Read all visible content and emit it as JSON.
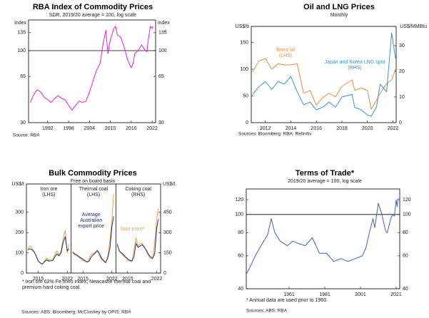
{
  "chart_data": [
    {
      "type": "line",
      "title": "RBA Index of Commodity Prices",
      "subtitle": "SDR, 2019/20 average = 100, log scale",
      "ylabel": "index",
      "y2label": "index",
      "log": true,
      "xlim": [
        1986.5,
        2023
      ],
      "xticks": [
        1992,
        1998,
        2004,
        2010,
        2016,
        2022
      ],
      "ylim": [
        30,
        167
      ],
      "yticks": [
        30,
        65,
        100,
        135
      ],
      "y2lim": [
        30,
        167
      ],
      "y2ticks": [
        30,
        65,
        100,
        135
      ],
      "hline": 100,
      "series": [
        {
          "color": "#e61ee6",
          "x": [
            1987,
            1988,
            1989,
            1990,
            1991,
            1992,
            1993,
            1994,
            1995,
            1996,
            1997,
            1998,
            1999,
            2000,
            2001,
            2002,
            2003,
            2004,
            2005,
            2006,
            2007,
            2008,
            2008.7,
            2009.3,
            2010,
            2011,
            2011.5,
            2012,
            2013,
            2014,
            2015,
            2016,
            2016.5,
            2017,
            2018,
            2019,
            2020,
            2020.5,
            2021,
            2021.5,
            2022,
            2022.3
          ],
          "values": [
            42,
            48,
            52,
            50,
            46,
            44,
            42,
            45,
            47,
            45,
            44,
            40,
            37,
            40,
            43,
            42,
            43,
            50,
            60,
            72,
            80,
            115,
            140,
            95,
            120,
            145,
            150,
            130,
            125,
            105,
            85,
            75,
            80,
            95,
            100,
            110,
            100,
            98,
            125,
            150,
            145,
            150
          ]
        }
      ],
      "source": "Source: RBA"
    },
    {
      "type": "line",
      "title": "Oil and LNG Prices",
      "subtitle": "Monthly",
      "ylabel": "US$/b",
      "y2label": "US$/MMBtu",
      "xlim": [
        2010.9,
        2022.25
      ],
      "xticks": [
        2012,
        2014,
        2016,
        2018,
        2020,
        2022
      ],
      "ylim": [
        0,
        180
      ],
      "yticks": [
        0,
        50,
        100,
        150
      ],
      "y2lim": [
        0,
        37.5
      ],
      "y2ticks": [
        0,
        10,
        20,
        30
      ],
      "series": [
        {
          "name": "Brent oil",
          "label": "(LHS)",
          "color": "#f08a3e",
          "x": [
            2011,
            2011.5,
            2012,
            2012.5,
            2013,
            2013.5,
            2014,
            2014.5,
            2015,
            2015.5,
            2016,
            2016.5,
            2017,
            2017.5,
            2018,
            2018.8,
            2019,
            2019.5,
            2020,
            2020.3,
            2020.7,
            2021,
            2021.5,
            2021.9,
            2022.2
          ],
          "values": [
            95,
            115,
            120,
            100,
            110,
            108,
            108,
            110,
            55,
            60,
            33,
            47,
            55,
            48,
            68,
            80,
            60,
            65,
            60,
            25,
            42,
            55,
            73,
            80,
            100
          ]
        },
        {
          "name": "Japan and Korea LNG spot",
          "label": "(RHS)",
          "color": "#3a93d6",
          "axis": "y2",
          "x": [
            2011,
            2011.5,
            2012,
            2012.5,
            2013,
            2013.5,
            2014,
            2014.5,
            2015,
            2015.5,
            2016,
            2016.5,
            2017,
            2017.5,
            2018,
            2018.8,
            2019,
            2019.5,
            2020,
            2020.3,
            2020.7,
            2021,
            2021.5,
            2021.9,
            2022.2
          ],
          "values": [
            11,
            14,
            16,
            13,
            16,
            15,
            18,
            12,
            7,
            8,
            5,
            6,
            8,
            6,
            10,
            11,
            6,
            5,
            3,
            2.5,
            6,
            15,
            12,
            35,
            25
          ]
        }
      ],
      "source": "Sources: Bloomberg; RBA; Refinitiv"
    },
    {
      "type": "panels",
      "title": "Bulk Commodity Prices",
      "subtitle": "Free on board basis",
      "ylabel": "US$/t",
      "y2label": "US$/t",
      "ylim": [
        0,
        440
      ],
      "yticks": [
        0,
        100,
        200,
        300
      ],
      "y2lim": [
        0,
        660
      ],
      "y2ticks": [
        0,
        150,
        300,
        450
      ],
      "xlim": [
        2012.5,
        2022.6
      ],
      "xticks": [
        2015,
        2022
      ],
      "x": [
        2012.5,
        2013,
        2013.5,
        2014,
        2014.5,
        2015,
        2015.5,
        2016,
        2016.5,
        2017,
        2017.5,
        2018,
        2018.5,
        2019,
        2019.5,
        2020,
        2020.5,
        2021,
        2021.5,
        2022,
        2022.4
      ],
      "series": [
        {
          "name": "Average Australian export price",
          "color": "#1f2e8c"
        },
        {
          "name": "Spot price*",
          "color": "#f5a03c"
        }
      ],
      "panels": [
        {
          "title": "Iron ore",
          "note": "(LHS)",
          "values": [
            [
              115,
              120,
              115,
              105,
              85,
              60,
              50,
              45,
              55,
              65,
              60,
              60,
              62,
              80,
              95,
              85,
              100,
              150,
              180,
              110,
              120
            ],
            [
              118,
              135,
              120,
              110,
              85,
              60,
              52,
              42,
              58,
              75,
              63,
              68,
              66,
              90,
              110,
              88,
              110,
              170,
              210,
              100,
              145
            ]
          ]
        },
        {
          "title": "Thermal coal",
          "note": "(LHS)",
          "values": [
            [
              105,
              95,
              90,
              82,
              75,
              68,
              62,
              55,
              60,
              80,
              90,
              100,
              110,
              95,
              72,
              62,
              52,
              75,
              120,
              230,
              280
            ],
            [
              100,
              90,
              85,
              78,
              70,
              62,
              58,
              52,
              70,
              95,
              95,
              105,
              115,
              85,
              65,
              58,
              50,
              85,
              160,
              260,
              390
            ]
          ]
        },
        {
          "title": "Coking coal",
          "note": "(RHS)",
          "axis": "y2",
          "values": [
            [
              210,
              165,
              150,
              135,
              120,
              105,
              95,
              90,
              120,
              220,
              190,
              200,
              210,
              190,
              170,
              140,
              120,
              110,
              140,
              330,
              400
            ],
            [
              220,
              160,
              145,
              125,
              115,
              95,
              88,
              85,
              170,
              260,
              200,
              215,
              220,
              200,
              160,
              130,
              110,
              105,
              220,
              400,
              480
            ]
          ]
        }
      ],
      "footnote": "* Iron ore 62% Fe fines index; Newcastle thermal coal and premium hard coking coal.",
      "source": "Sources: ABS; Bloomberg; McCloskey by OPIS; RBA"
    },
    {
      "type": "line",
      "title": "Terms of Trade*",
      "subtitle": "2019/20 average = 100, log scale",
      "log": true,
      "xlim": [
        1937,
        2023
      ],
      "xticks": [
        1961,
        1981,
        2001,
        2021
      ],
      "ylim": [
        40,
        137
      ],
      "yticks": [
        40,
        60,
        80,
        100,
        120
      ],
      "y2lim": [
        40,
        137
      ],
      "y2ticks": [
        40,
        60,
        80,
        100,
        120
      ],
      "hline": 100,
      "series": [
        {
          "color": "#3a63c9",
          "x": [
            1937,
            1939,
            1942,
            1946,
            1949,
            1951,
            1953,
            1956,
            1960,
            1963,
            1966,
            1970,
            1974,
            1978,
            1982,
            1986,
            1990,
            1994,
            1998,
            2002,
            2004,
            2006,
            2008,
            2009,
            2011,
            2013,
            2015,
            2016,
            2018,
            2019,
            2020,
            2021,
            2021.5,
            2022
          ],
          "values": [
            48,
            52,
            60,
            70,
            78,
            95,
            80,
            72,
            68,
            72,
            70,
            68,
            75,
            62,
            62,
            56,
            58,
            56,
            58,
            60,
            66,
            80,
            95,
            85,
            115,
            100,
            82,
            80,
            95,
            100,
            98,
            120,
            110,
            122
          ]
        }
      ],
      "footnote": "* Annual data are used prior to 1960.",
      "source": "Sources: ABS; RBA"
    }
  ]
}
